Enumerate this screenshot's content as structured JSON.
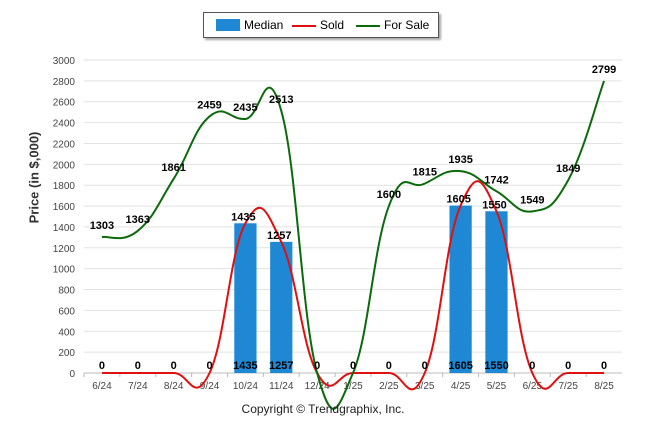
{
  "legend": {
    "median_label": "Median",
    "sold_label": "Sold",
    "for_sale_label": "For Sale"
  },
  "copyright": "Copyright © Trendgraphix, Inc.",
  "colors": {
    "median": "#1e88d4",
    "sold": "#e01010",
    "for_sale": "#0b6b0b"
  },
  "chart_data": {
    "type": "bar",
    "title": "",
    "xlabel": "",
    "ylabel": "Price (in $,000)",
    "ylim": [
      0,
      3000
    ],
    "yticks": [
      0,
      200,
      400,
      600,
      800,
      1000,
      1200,
      1400,
      1600,
      1800,
      2000,
      2200,
      2400,
      2600,
      2800,
      3000
    ],
    "grid": true,
    "legend_position": "top-center",
    "categories": [
      "6/24",
      "7/24",
      "8/24",
      "9/24",
      "10/24",
      "11/24",
      "12/24",
      "1/25",
      "2/25",
      "3/25",
      "4/25",
      "5/25",
      "6/25",
      "7/25",
      "8/25"
    ],
    "series": [
      {
        "name": "Median",
        "type": "bar",
        "values": [
          0,
          0,
          0,
          0,
          1435,
          1257,
          0,
          0,
          0,
          0,
          1605,
          1550,
          0,
          0,
          0
        ]
      },
      {
        "name": "Sold",
        "type": "line",
        "values": [
          0,
          0,
          0,
          0,
          1435,
          1257,
          0,
          0,
          0,
          0,
          1605,
          1550,
          0,
          0,
          0
        ]
      },
      {
        "name": "For Sale",
        "type": "line",
        "values": [
          1303,
          1363,
          1861,
          2459,
          2435,
          2513,
          0,
          0,
          1600,
          1815,
          1935,
          1742,
          1549,
          1849,
          2799
        ]
      }
    ]
  }
}
